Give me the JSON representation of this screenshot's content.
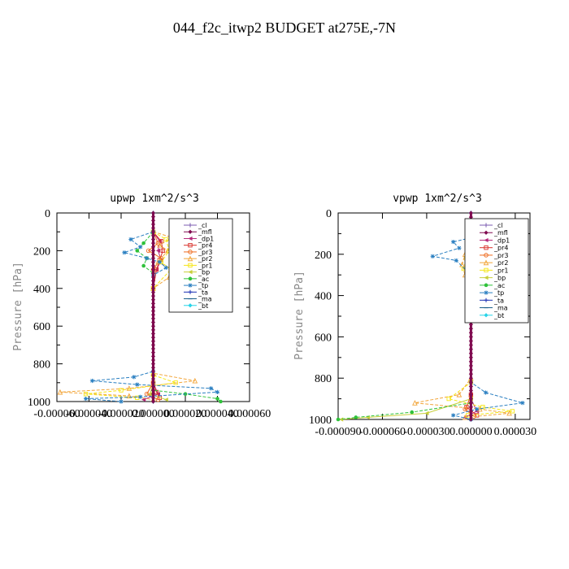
{
  "figure": {
    "title": "044_f2c_itwp2  BUDGET at275E,-7N"
  },
  "legend_entries": [
    {
      "name": "_cl",
      "color": "#7b5bb0",
      "marker": "+"
    },
    {
      "name": "_mfl",
      "color": "#7f0a4f",
      "marker": "diamond"
    },
    {
      "name": "_dp1",
      "color": "#b4287a",
      "marker": "triangle-left"
    },
    {
      "name": "_pr4",
      "color": "#d9302a",
      "marker": "square-open"
    },
    {
      "name": "_pr3",
      "color": "#ee6a1e",
      "marker": "circle-open"
    },
    {
      "name": "_pr2",
      "color": "#f2a53a",
      "marker": "triangle-open"
    },
    {
      "name": "_pr1",
      "color": "#f5e616",
      "marker": "square-open"
    },
    {
      "name": "_bp",
      "color": "#c8cf3a",
      "marker": "triangle-left"
    },
    {
      "name": "_ac",
      "color": "#2fc23a",
      "marker": "circle"
    },
    {
      "name": "_tp",
      "color": "#2a7fc1",
      "marker": "asterisk"
    },
    {
      "name": "_ta",
      "color": "#1a2fb4",
      "marker": "+"
    },
    {
      "name": "_ma",
      "color": "#1a5f8a",
      "marker": "dash"
    },
    {
      "name": "_bt",
      "color": "#27d4e8",
      "marker": "diamond"
    }
  ],
  "chart_data": [
    {
      "type": "line",
      "title": "upwp  1xm^2/s^3",
      "ylabel": "Pressure [hPa]",
      "xlabel": "",
      "xlim": [
        -6e-05,
        6e-05
      ],
      "ylim": [
        1000,
        0
      ],
      "xticks": [
        "-0.000060",
        "-0.000040",
        "-0.000020",
        "0.000000",
        "0.000020",
        "0.000040",
        "0.000060"
      ],
      "xtick_values": [
        -6e-05,
        -4e-05,
        -2e-05,
        0,
        2e-05,
        4e-05,
        6e-05
      ],
      "yticks": [
        "0",
        "200",
        "400",
        "600",
        "800",
        "1000"
      ],
      "ytick_values": [
        0,
        200,
        400,
        600,
        800,
        1000
      ],
      "legend_placement": "top-right",
      "series": [
        {
          "name": "_cl",
          "points": [
            [
              0,
              0
            ],
            [
              0,
              500
            ],
            [
              0,
              1000
            ]
          ]
        },
        {
          "name": "_mfl",
          "points": [
            [
              0,
              0
            ],
            [
              0,
              500
            ],
            [
              0,
              1000
            ]
          ]
        },
        {
          "name": "_dp1",
          "points": [
            [
              0,
              100
            ],
            [
              4e-06,
              150
            ],
            [
              3e-06,
              200
            ],
            [
              5e-06,
              250
            ],
            [
              2e-06,
              300
            ],
            [
              0,
              400
            ],
            [
              0,
              900
            ],
            [
              3e-06,
              960
            ],
            [
              -6e-06,
              990
            ]
          ]
        },
        {
          "name": "_pr4",
          "points": [
            [
              0,
              100
            ],
            [
              5e-06,
              150
            ],
            [
              6e-06,
              200
            ],
            [
              4e-06,
              250
            ],
            [
              2e-06,
              300
            ],
            [
              0,
              400
            ],
            [
              0,
              900
            ],
            [
              2e-06,
              950
            ],
            [
              4e-06,
              980
            ]
          ]
        },
        {
          "name": "_pr3",
          "points": [
            [
              0,
              100
            ],
            [
              3e-06,
              160
            ],
            [
              -3e-06,
              200
            ],
            [
              5e-06,
              240
            ],
            [
              0,
              300
            ],
            [
              0,
              900
            ],
            [
              -4e-06,
              960
            ],
            [
              3e-06,
              990
            ]
          ]
        },
        {
          "name": "_pr2",
          "points": [
            [
              0,
              100
            ],
            [
              1.2e-05,
              130
            ],
            [
              4e-06,
              170
            ],
            [
              9e-06,
              200
            ],
            [
              3e-06,
              260
            ],
            [
              1.2e-05,
              300
            ],
            [
              1e-05,
              340
            ],
            [
              0,
              400
            ],
            [
              0,
              850
            ],
            [
              2.6e-05,
              890
            ],
            [
              -1.5e-05,
              930
            ],
            [
              -5.8e-05,
              950
            ],
            [
              -1.5e-05,
              970
            ],
            [
              0,
              990
            ]
          ]
        },
        {
          "name": "_pr1",
          "points": [
            [
              0,
              100
            ],
            [
              8e-06,
              140
            ],
            [
              1e-05,
              200
            ],
            [
              5e-06,
              260
            ],
            [
              1.1e-05,
              300
            ],
            [
              0,
              400
            ],
            [
              0,
              860
            ],
            [
              1.4e-05,
              900
            ],
            [
              -2e-05,
              940
            ],
            [
              -4.2e-05,
              960
            ],
            [
              -1e-05,
              980
            ]
          ]
        },
        {
          "name": "_bp",
          "points": [
            [
              0,
              900
            ],
            [
              -2e-06,
              960
            ],
            [
              8e-06,
              990
            ]
          ]
        },
        {
          "name": "_ac",
          "points": [
            [
              0,
              100
            ],
            [
              -6e-06,
              160
            ],
            [
              -1e-05,
              200
            ],
            [
              -4e-06,
              240
            ],
            [
              -6e-06,
              280
            ],
            [
              0,
              320
            ],
            [
              0,
              940
            ],
            [
              2e-05,
              960
            ],
            [
              4e-05,
              985
            ],
            [
              4.2e-05,
              1000
            ]
          ]
        },
        {
          "name": "_tp",
          "points": [
            [
              0,
              100
            ],
            [
              -1.4e-05,
              140
            ],
            [
              -8e-06,
              180
            ],
            [
              -1.8e-05,
              210
            ],
            [
              -4e-06,
              240
            ],
            [
              4e-06,
              260
            ],
            [
              8e-06,
              290
            ],
            [
              0,
              330
            ],
            [
              0,
              840
            ],
            [
              -1.2e-05,
              870
            ],
            [
              -3.8e-05,
              890
            ],
            [
              -1e-05,
              910
            ],
            [
              3.6e-05,
              930
            ],
            [
              4e-05,
              950
            ],
            [
              -8e-06,
              975
            ],
            [
              -4.2e-05,
              985
            ],
            [
              -2e-05,
              1000
            ]
          ]
        },
        {
          "name": "_ta",
          "points": [
            [
              0,
              0
            ],
            [
              0,
              1000
            ]
          ]
        },
        {
          "name": "_ma",
          "points": [
            [
              0,
              0
            ],
            [
              0,
              1000
            ]
          ]
        },
        {
          "name": "_bt",
          "points": [
            [
              0,
              0
            ],
            [
              0,
              1000
            ]
          ]
        }
      ]
    },
    {
      "type": "line",
      "title": "vpwp  1xm^2/s^3",
      "ylabel": "Pressure [hPa]",
      "xlabel": "",
      "xlim": [
        -9e-05,
        4e-05
      ],
      "ylim": [
        1000,
        0
      ],
      "xticks": [
        "-0.000090",
        "-0.000060",
        "-0.000030",
        "0.000000",
        "0.000030"
      ],
      "xtick_values": [
        -9e-05,
        -6e-05,
        -3e-05,
        0,
        3e-05
      ],
      "yticks": [
        "0",
        "200",
        "400",
        "600",
        "800",
        "1000"
      ],
      "ytick_values": [
        0,
        200,
        400,
        600,
        800,
        1000
      ],
      "legend_placement": "top-right",
      "series": [
        {
          "name": "_cl",
          "points": [
            [
              0,
              0
            ],
            [
              0,
              500
            ],
            [
              0,
              1000
            ]
          ]
        },
        {
          "name": "_mfl",
          "points": [
            [
              0,
              0
            ],
            [
              0,
              500
            ],
            [
              0,
              1000
            ]
          ]
        },
        {
          "name": "_dp1",
          "points": [
            [
              0,
              100
            ],
            [
              4e-06,
              150
            ],
            [
              3e-06,
              220
            ],
            [
              0,
              300
            ],
            [
              0,
              900
            ],
            [
              4e-06,
              960
            ],
            [
              -4e-06,
              990
            ]
          ]
        },
        {
          "name": "_pr4",
          "points": [
            [
              0,
              100
            ],
            [
              6e-06,
              160
            ],
            [
              4e-06,
              200
            ],
            [
              2e-06,
              260
            ],
            [
              0,
              320
            ],
            [
              0,
              880
            ],
            [
              -3e-06,
              940
            ],
            [
              4e-06,
              980
            ]
          ]
        },
        {
          "name": "_pr3",
          "points": [
            [
              0,
              100
            ],
            [
              4e-06,
              180
            ],
            [
              -2e-06,
              220
            ],
            [
              0,
              300
            ],
            [
              0,
              890
            ],
            [
              -4e-06,
              950
            ],
            [
              2e-06,
              985
            ]
          ]
        },
        {
          "name": "_pr2",
          "points": [
            [
              0,
              100
            ],
            [
              -4e-06,
              200
            ],
            [
              -6e-06,
              250
            ],
            [
              -4e-06,
              300
            ],
            [
              0,
              330
            ],
            [
              0,
              800
            ],
            [
              -8e-06,
              880
            ],
            [
              -3.8e-05,
              920
            ],
            [
              6e-06,
              950
            ],
            [
              2.6e-05,
              970
            ],
            [
              -4e-06,
              990
            ]
          ]
        },
        {
          "name": "_pr1",
          "points": [
            [
              0,
              100
            ],
            [
              -3e-06,
              220
            ],
            [
              -5e-06,
              270
            ],
            [
              0,
              310
            ],
            [
              0,
              820
            ],
            [
              -1.5e-05,
              900
            ],
            [
              8e-06,
              940
            ],
            [
              2.8e-05,
              960
            ],
            [
              -2e-06,
              980
            ]
          ]
        },
        {
          "name": "_bp",
          "points": [
            [
              0,
              900
            ],
            [
              -3e-05,
              970
            ],
            [
              -7e-05,
              990
            ],
            [
              -8.8e-05,
              1000
            ]
          ]
        },
        {
          "name": "_ac",
          "points": [
            [
              0,
              920
            ],
            [
              -4e-05,
              965
            ],
            [
              -7.8e-05,
              990
            ],
            [
              -9e-05,
              1000
            ]
          ]
        },
        {
          "name": "_tp",
          "points": [
            [
              0,
              120
            ],
            [
              -1.2e-05,
              140
            ],
            [
              -8e-06,
              170
            ],
            [
              -2.6e-05,
              210
            ],
            [
              -1e-05,
              230
            ],
            [
              0,
              300
            ],
            [
              0,
              820
            ],
            [
              1e-05,
              870
            ],
            [
              3.5e-05,
              920
            ],
            [
              4e-06,
              950
            ],
            [
              -1.2e-05,
              980
            ],
            [
              0,
              1000
            ]
          ]
        },
        {
          "name": "_ta",
          "points": [
            [
              0,
              0
            ],
            [
              0,
              1000
            ]
          ]
        },
        {
          "name": "_ma",
          "points": [
            [
              0,
              0
            ],
            [
              0,
              1000
            ]
          ]
        },
        {
          "name": "_bt",
          "points": [
            [
              0,
              0
            ],
            [
              0,
              1000
            ]
          ]
        }
      ]
    }
  ]
}
